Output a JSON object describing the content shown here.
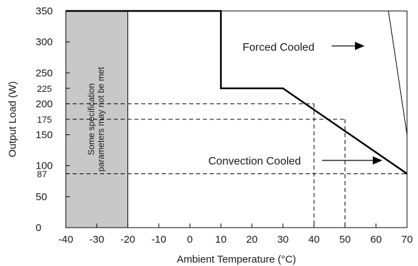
{
  "chart_data": {
    "type": "line",
    "title": "",
    "xlabel": "Ambient Temperature (°C)",
    "ylabel": "Output Load (W)",
    "xlim": [
      -40,
      70
    ],
    "ylim": [
      0,
      350
    ],
    "x_ticks": [
      "-40",
      "-30",
      "-20",
      "-10",
      "0",
      "10",
      "20",
      "30",
      "40",
      "50",
      "60",
      "70"
    ],
    "y_ticks": [
      {
        "value": 0,
        "label": "0"
      },
      {
        "value": 50,
        "label": "50"
      },
      {
        "value": 87,
        "label": "87"
      },
      {
        "value": 100,
        "label": "100"
      },
      {
        "value": 150,
        "label": "150"
      },
      {
        "value": 175,
        "label": "175"
      },
      {
        "value": 200,
        "label": "200"
      },
      {
        "value": 225,
        "label": "225"
      },
      {
        "value": 250,
        "label": "250"
      },
      {
        "value": 300,
        "label": "300"
      },
      {
        "value": 350,
        "label": "350"
      }
    ],
    "shaded_region": {
      "x_range": [
        -40,
        -20
      ],
      "label_line1": "Some specification",
      "label_line2": "parameters may not be met",
      "color": "#c8c8c8"
    },
    "series": [
      {
        "name": "Forced Cooled",
        "x": [
          -40,
          70,
          70,
          64,
          -40
        ],
        "y": [
          0,
          0,
          150,
          350,
          350
        ],
        "color": "#000000"
      },
      {
        "name": "Convection Cooled",
        "x": [
          -40,
          10,
          10,
          30,
          70
        ],
        "y": [
          350,
          350,
          225,
          225,
          87
        ],
        "color": "#000000"
      }
    ],
    "guide_lines": [
      {
        "y": 200,
        "x": 40
      },
      {
        "y": 175,
        "x": 50
      },
      {
        "y": 87,
        "x": 70
      }
    ],
    "annotations": [
      {
        "text": "Forced Cooled",
        "points_to_series": "Forced Cooled"
      },
      {
        "text": "Convection Cooled",
        "points_to_series": "Convection Cooled"
      }
    ]
  }
}
